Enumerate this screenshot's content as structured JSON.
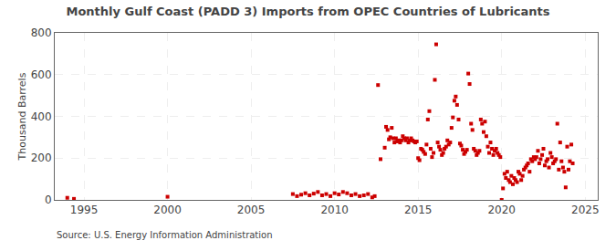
{
  "chart_data": {
    "type": "scatter",
    "title": "Monthly Gulf Coast (PADD 3) Imports from OPEC Countries of Lubricants",
    "y_label": "Thousand Barrels",
    "annotations": [
      "Source: U.S. Energy Information Administration"
    ],
    "color": "#cc0000",
    "marker": "square",
    "grid": true,
    "xlim": [
      1993.25,
      2025.75
    ],
    "ylim": [
      0,
      800
    ],
    "xticks": [
      1995,
      2000,
      2005,
      2010,
      2015,
      2020,
      2025
    ],
    "yticks": [
      0,
      200,
      400,
      600,
      800
    ],
    "x": [
      1994.0,
      1994.4,
      2000.0,
      2007.5,
      2007.75,
      2008.0,
      2008.25,
      2008.5,
      2008.75,
      2009.0,
      2009.25,
      2009.5,
      2009.75,
      2010.0,
      2010.25,
      2010.5,
      2010.75,
      2011.0,
      2011.25,
      2011.5,
      2011.75,
      2012.0,
      2012.25,
      2012.4,
      2012.6,
      2012.75,
      2013.0,
      2013.08,
      2013.17,
      2013.25,
      2013.33,
      2013.42,
      2013.5,
      2013.58,
      2013.67,
      2013.75,
      2013.83,
      2013.92,
      2014.0,
      2014.08,
      2014.17,
      2014.25,
      2014.33,
      2014.42,
      2014.5,
      2014.58,
      2014.67,
      2014.75,
      2014.83,
      2014.92,
      2015.0,
      2015.08,
      2015.17,
      2015.25,
      2015.33,
      2015.42,
      2015.5,
      2015.58,
      2015.67,
      2015.75,
      2015.83,
      2015.92,
      2016.0,
      2016.08,
      2016.17,
      2016.25,
      2016.33,
      2016.42,
      2016.5,
      2016.58,
      2016.67,
      2016.75,
      2016.83,
      2016.92,
      2017.0,
      2017.08,
      2017.17,
      2017.25,
      2017.33,
      2017.42,
      2017.5,
      2017.58,
      2017.67,
      2017.75,
      2017.83,
      2017.92,
      2018.0,
      2018.08,
      2018.17,
      2018.25,
      2018.33,
      2018.42,
      2018.5,
      2018.58,
      2018.67,
      2018.75,
      2018.83,
      2018.92,
      2019.0,
      2019.08,
      2019.17,
      2019.25,
      2019.33,
      2019.42,
      2019.5,
      2019.58,
      2019.67,
      2019.75,
      2019.83,
      2019.92,
      2020.0,
      2020.08,
      2020.17,
      2020.25,
      2020.33,
      2020.42,
      2020.5,
      2020.58,
      2020.67,
      2020.75,
      2020.83,
      2020.92,
      2021.0,
      2021.08,
      2021.17,
      2021.25,
      2021.33,
      2021.42,
      2021.5,
      2021.58,
      2021.67,
      2021.75,
      2021.83,
      2021.92,
      2022.0,
      2022.08,
      2022.17,
      2022.25,
      2022.33,
      2022.42,
      2022.5,
      2022.58,
      2022.67,
      2022.75,
      2022.83,
      2022.92,
      2023.0,
      2023.08,
      2023.17,
      2023.25,
      2023.33,
      2023.42,
      2023.5,
      2023.58,
      2023.67,
      2023.75,
      2023.83,
      2023.92,
      2024.0,
      2024.08,
      2024.17,
      2024.25
    ],
    "values": [
      10,
      5,
      15,
      28,
      18,
      25,
      32,
      22,
      30,
      38,
      22,
      28,
      18,
      32,
      26,
      38,
      32,
      22,
      28,
      18,
      22,
      28,
      12,
      18,
      550,
      195,
      250,
      350,
      335,
      290,
      300,
      345,
      295,
      275,
      295,
      280,
      285,
      275,
      285,
      305,
      295,
      285,
      295,
      275,
      285,
      295,
      285,
      280,
      275,
      280,
      200,
      190,
      245,
      240,
      230,
      220,
      265,
      385,
      425,
      245,
      205,
      225,
      575,
      745,
      275,
      255,
      240,
      215,
      225,
      245,
      255,
      285,
      265,
      275,
      345,
      395,
      475,
      495,
      455,
      385,
      270,
      260,
      240,
      220,
      230,
      240,
      605,
      555,
      365,
      335,
      245,
      235,
      215,
      225,
      235,
      385,
      365,
      325,
      375,
      305,
      255,
      225,
      275,
      245,
      215,
      235,
      245,
      225,
      215,
      205,
      0,
      55,
      125,
      105,
      135,
      95,
      85,
      115,
      75,
      105,
      95,
      85,
      135,
      125,
      95,
      115,
      145,
      155,
      165,
      175,
      135,
      195,
      185,
      205,
      195,
      205,
      235,
      175,
      195,
      215,
      245,
      165,
      185,
      195,
      155,
      225,
      205,
      175,
      185,
      195,
      365,
      145,
      275,
      185,
      155,
      135,
      60,
      255,
      145,
      185,
      265,
      175
    ]
  }
}
